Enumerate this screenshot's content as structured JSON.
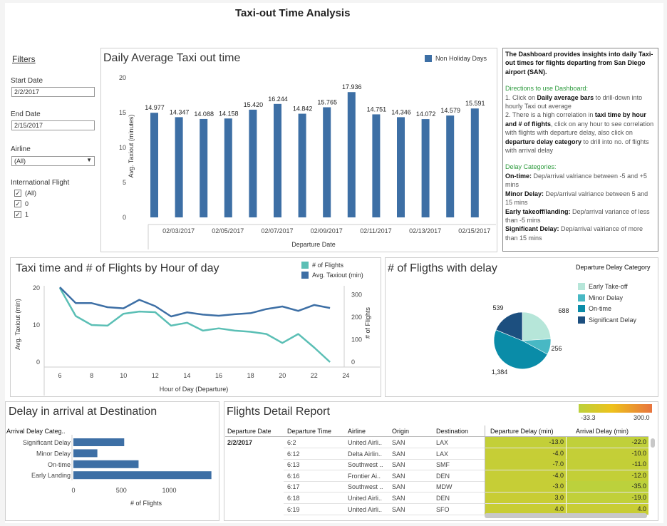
{
  "header": {
    "title": "Taxi-out Time Analysis"
  },
  "filters": {
    "title": "Filters",
    "start_label": "Start Date",
    "start_value": "2/2/2017",
    "end_label": "End Date",
    "end_value": "2/15/2017",
    "airline_label": "Airline",
    "airline_value": "(All)",
    "intl_label": "International Flight",
    "intl_options": [
      "(All)",
      "0",
      "1"
    ]
  },
  "info": {
    "intro": "The Dashboard provides insights into daily Taxi-out times for flights departing from San Diego airport (SAN).",
    "dir_title": "Directions to use Dashboard:",
    "d1a": "1. Click on ",
    "d1b": "Daily average bars",
    "d1c": " to drill-down into hourly Taxi out average",
    "d2a": "2. There is a high correlation in ",
    "d2b": "taxi time by hour and # of flights",
    "d2c": ", click on any hour to see correlation with flights with departure delay, also click on ",
    "d2d": "departure delay category",
    "d2e": " to drill into no. of flights with arrival delay",
    "cat_title": "Delay Categories:",
    "c1a": "On-time:",
    "c1b": " Dep/arrival valriance between -5 and +5 mins",
    "c2a": "Minor Delay:",
    "c2b": " Dep/arrival valriance between 5 and 15 mins",
    "c3a": "Early takeoff/landing:",
    "c3b": " Dep/arrival variance of less than -5 mins",
    "c4a": "Significant Delay:",
    "c4b": " Dep/arrival valriance of more than 15 mins"
  },
  "chart_data": [
    {
      "type": "bar",
      "title": "Daily Average Taxi out time",
      "xlabel": "Departure Date",
      "ylabel": "Avg. Taxiout (minutes)",
      "legend": [
        "Non Holiday Days"
      ],
      "legend_position": "top-right",
      "color": "#3d6fa5",
      "ylim": [
        0,
        20
      ],
      "yticks": [
        0,
        5,
        10,
        15,
        20
      ],
      "categories": [
        "02/02/2017",
        "02/03/2017",
        "02/04/2017",
        "02/05/2017",
        "02/06/2017",
        "02/07/2017",
        "02/08/2017",
        "02/09/2017",
        "02/10/2017",
        "02/11/2017",
        "02/12/2017",
        "02/13/2017",
        "02/14/2017",
        "02/15/2017"
      ],
      "xtick_labels": [
        "02/03/2017",
        "02/05/2017",
        "02/07/2017",
        "02/09/2017",
        "02/11/2017",
        "02/13/2017",
        "02/15/2017"
      ],
      "values": [
        14.977,
        14.347,
        14.088,
        14.158,
        15.42,
        16.244,
        14.842,
        15.765,
        17.936,
        14.751,
        14.346,
        14.072,
        14.579,
        15.591
      ],
      "value_labels": [
        "14.977",
        "14.347",
        "14.088",
        "14.158",
        "15.420",
        "16.244",
        "14.842",
        "15.765",
        "17.936",
        "14.751",
        "14.346",
        "14.072",
        "14.579",
        "15.591"
      ]
    },
    {
      "type": "line",
      "title": "Taxi time and # of Flights by Hour of day",
      "xlabel": "Hour of Day (Departure)",
      "ylabel": "Avg. Taxiout (min)",
      "ylabel_right": "# of Flights",
      "xlim": [
        5,
        24
      ],
      "xticks": [
        6,
        8,
        10,
        12,
        14,
        16,
        18,
        20,
        22,
        24
      ],
      "ylim": [
        0,
        20
      ],
      "yticks": [
        0,
        10,
        20
      ],
      "ylim_right": [
        0,
        330
      ],
      "yticks_right": [
        0,
        100,
        200,
        300
      ],
      "legend_position": "top-right",
      "series": [
        {
          "name": "# of Flights",
          "axis": "right",
          "color": "#5bbfb5",
          "x": [
            6,
            7,
            8,
            9,
            10,
            11,
            12,
            13,
            14,
            15,
            16,
            17,
            18,
            19,
            20,
            21,
            22,
            23
          ],
          "values": [
            330,
            205,
            165,
            162,
            215,
            225,
            222,
            162,
            175,
            140,
            150,
            140,
            135,
            125,
            85,
            125,
            65,
            0
          ]
        },
        {
          "name": "Avg. Taxiout (min)",
          "axis": "left",
          "color": "#3d6fa5",
          "x": [
            6,
            7,
            8,
            9,
            10,
            11,
            12,
            13,
            14,
            15,
            16,
            17,
            18,
            19,
            20,
            21,
            22,
            23
          ],
          "values": [
            20.2,
            15.9,
            15.9,
            14.8,
            14.5,
            16.8,
            15.1,
            12.3,
            13.4,
            12.8,
            12.5,
            12.9,
            13.2,
            14.3,
            15.0,
            13.8,
            15.4,
            14.6
          ]
        }
      ]
    },
    {
      "type": "pie",
      "title": "# of Fligths with delay",
      "legend_title": "Departure Delay Category",
      "legend_position": "right",
      "slices": [
        {
          "name": "Early Take-off",
          "value": 688,
          "label": "688",
          "color": "#b6e6d9"
        },
        {
          "name": "Minor Delay",
          "value": 256,
          "label": "256",
          "color": "#48b8c4"
        },
        {
          "name": "On-time",
          "value": 1384,
          "label": "1,384",
          "color": "#0a8ca8"
        },
        {
          "name": "Significant Delay",
          "value": 539,
          "label": "539",
          "color": "#1c4f7f"
        }
      ]
    },
    {
      "type": "bar",
      "orientation": "horizontal",
      "title": "Delay in arrival at Destination",
      "ylabel": "Arrival Delay Categ..",
      "xlabel": "# of Flights",
      "color": "#3d6fa5",
      "xlim": [
        0,
        1450
      ],
      "xticks": [
        0,
        500,
        1000
      ],
      "categories": [
        "Significant Delay",
        "Minor Delay",
        "On-time",
        "Early Landing"
      ],
      "values": [
        530,
        250,
        680,
        1440
      ]
    },
    {
      "type": "table",
      "title": "Flights Detail Report",
      "color_scale": {
        "min": "-33.3",
        "max": "300.0",
        "colors": [
          "#bcd13c",
          "#eec21c",
          "#e8743e"
        ]
      },
      "columns": [
        "Departure Date",
        "Departure Time",
        "Airline",
        "Origin",
        "Destination",
        "Departure Delay (min)",
        "Arrival Delay (min)"
      ],
      "date": "2/2/2017",
      "rows": [
        {
          "time": "6:2",
          "airline": "United Airli..",
          "origin": "SAN",
          "dest": "LAX",
          "dep": "-13.0",
          "arr": "-22.0"
        },
        {
          "time": "6:12",
          "airline": "Delta Airlin..",
          "origin": "SAN",
          "dest": "LAX",
          "dep": "-4.0",
          "arr": "-10.0"
        },
        {
          "time": "6:13",
          "airline": "Southwest ..",
          "origin": "SAN",
          "dest": "SMF",
          "dep": "-7.0",
          "arr": "-11.0"
        },
        {
          "time": "6:16",
          "airline": "Frontier Ai..",
          "origin": "SAN",
          "dest": "DEN",
          "dep": "-4.0",
          "arr": "-12.0"
        },
        {
          "time": "6:17",
          "airline": "Southwest ..",
          "origin": "SAN",
          "dest": "MDW",
          "dep": "-3.0",
          "arr": "-35.0"
        },
        {
          "time": "6:18",
          "airline": "United Airli..",
          "origin": "SAN",
          "dest": "DEN",
          "dep": "3.0",
          "arr": "-19.0"
        },
        {
          "time": "6:19",
          "airline": "United Airli..",
          "origin": "SAN",
          "dest": "SFO",
          "dep": "4.0",
          "arr": "4.0"
        }
      ]
    }
  ]
}
